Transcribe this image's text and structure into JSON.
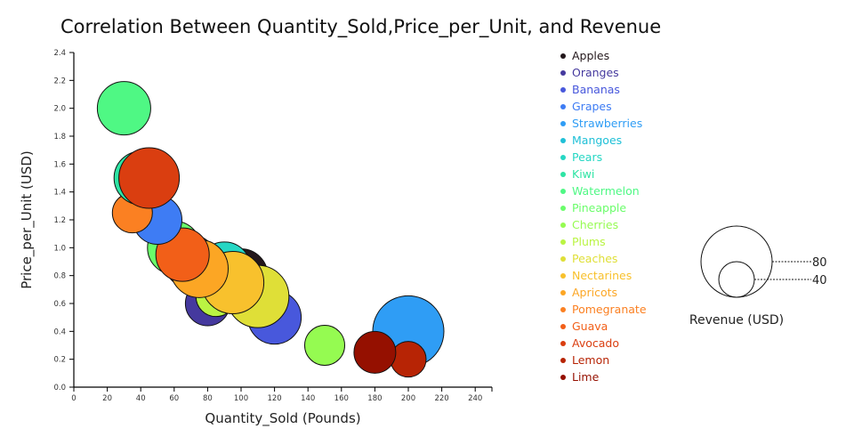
{
  "chart_data": {
    "type": "scatter",
    "subtype": "bubble",
    "title": "Correlation Between Quantity_Sold,Price_per_Unit, and Revenue",
    "xlabel": "Quantity_Sold (Pounds)",
    "ylabel": "Price_per_Unit (USD)",
    "xlim": [
      0,
      250
    ],
    "ylim": [
      0,
      2.4
    ],
    "xticks": [
      "0",
      "20",
      "40",
      "60",
      "80",
      "100",
      "120",
      "140",
      "160",
      "180",
      "200",
      "220",
      "240"
    ],
    "yticks": [
      "0.0",
      "0.2",
      "0.4",
      "0.6",
      "0.8",
      "1.0",
      "1.2",
      "1.4",
      "1.6",
      "1.8",
      "2.0",
      "2.2",
      "2.4"
    ],
    "grid": false,
    "legend_position": "right",
    "series": [
      {
        "name": "Apples",
        "x": 100,
        "y": 0.8,
        "revenue": 60,
        "color": "#23171b"
      },
      {
        "name": "Oranges",
        "x": 80,
        "y": 0.6,
        "revenue": 50,
        "color": "#45399e"
      },
      {
        "name": "Bananas",
        "x": 120,
        "y": 0.5,
        "revenue": 60,
        "color": "#4858dc"
      },
      {
        "name": "Grapes",
        "x": 50,
        "y": 1.2,
        "revenue": 55,
        "color": "#3e7cf4"
      },
      {
        "name": "Strawberries",
        "x": 200,
        "y": 0.4,
        "revenue": 80,
        "color": "#2f9df5"
      },
      {
        "name": "Mangoes",
        "x": 70,
        "y": 0.9,
        "revenue": 60,
        "color": "#1fc0d7"
      },
      {
        "name": "Pears",
        "x": 90,
        "y": 0.85,
        "revenue": 60,
        "color": "#26d7c4"
      },
      {
        "name": "Kiwi",
        "x": 40,
        "y": 1.5,
        "revenue": 60,
        "color": "#2ee4a4"
      },
      {
        "name": "Watermelon",
        "x": 30,
        "y": 2.0,
        "revenue": 60,
        "color": "#4ff884"
      },
      {
        "name": "Pineapple",
        "x": 60,
        "y": 1.0,
        "revenue": 60,
        "color": "#6afd6a"
      },
      {
        "name": "Cherries",
        "x": 150,
        "y": 0.3,
        "revenue": 45,
        "color": "#95fb51"
      },
      {
        "name": "Plums",
        "x": 85,
        "y": 0.65,
        "revenue": 45,
        "color": "#baf443"
      },
      {
        "name": "Peaches",
        "x": 110,
        "y": 0.65,
        "revenue": 70,
        "color": "#dfdf37"
      },
      {
        "name": "Nectarines",
        "x": 95,
        "y": 0.75,
        "revenue": 70,
        "color": "#f8c12d"
      },
      {
        "name": "Apricots",
        "x": 75,
        "y": 0.85,
        "revenue": 65,
        "color": "#fca624"
      },
      {
        "name": "Pomegranate",
        "x": 35,
        "y": 1.25,
        "revenue": 45,
        "color": "#fb8022"
      },
      {
        "name": "Guava",
        "x": 65,
        "y": 0.95,
        "revenue": 60,
        "color": "#f25f18"
      },
      {
        "name": "Avocado",
        "x": 45,
        "y": 1.5,
        "revenue": 68,
        "color": "#da3e10"
      },
      {
        "name": "Lemon",
        "x": 200,
        "y": 0.2,
        "revenue": 40,
        "color": "#b72405"
      },
      {
        "name": "Lime",
        "x": 180,
        "y": 0.25,
        "revenue": 47,
        "color": "#951000"
      }
    ],
    "draw_order": [
      "Bananas",
      "Apples",
      "Pears",
      "Mangoes",
      "Oranges",
      "Plums",
      "Peaches",
      "Nectarines",
      "Apricots",
      "Pineapple",
      "Guava",
      "Grapes",
      "Pomegranate",
      "Kiwi",
      "Avocado",
      "Watermelon",
      "Cherries",
      "Strawberries",
      "Lemon",
      "Lime"
    ],
    "size_legend": {
      "title": "Revenue (USD)",
      "values": [
        80,
        40
      ],
      "labels": [
        "80",
        "40"
      ]
    }
  }
}
